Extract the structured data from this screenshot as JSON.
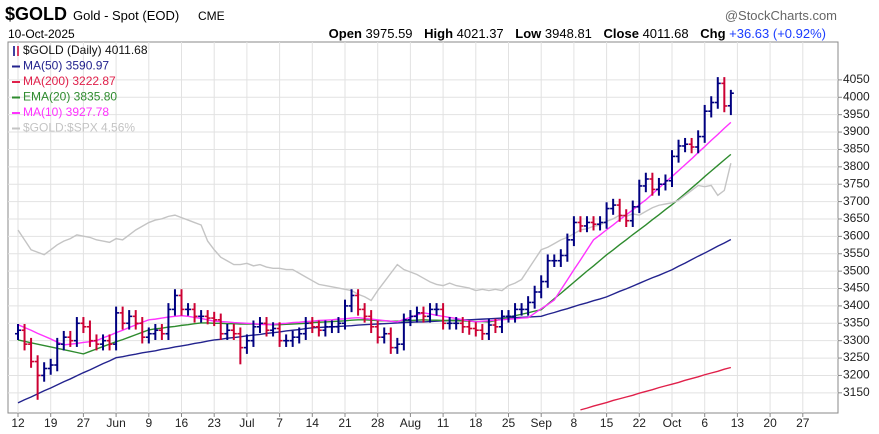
{
  "header": {
    "symbol": "$GOLD",
    "name": "Gold - Spot (EOD)",
    "exchange": "CME",
    "date": "10-Oct-2025",
    "brand": "@StockCharts.com",
    "open_label": "Open",
    "high_label": "High",
    "low_label": "Low",
    "close_label": "Close",
    "chg_label": "Chg",
    "chg": "+36.63 (+0.92%)"
  },
  "chart_data": {
    "type": "ohlc",
    "name": "$GOLD (Daily) 4011.68",
    "up_color": "#000080",
    "down_color": "#cc0033",
    "categories": [
      "12",
      null,
      null,
      null,
      null,
      "19",
      null,
      null,
      null,
      null,
      "27",
      null,
      null,
      null,
      null,
      "Jun",
      null,
      null,
      null,
      null,
      "9",
      null,
      null,
      null,
      null,
      "16",
      null,
      null,
      null,
      null,
      "23",
      null,
      null,
      null,
      null,
      "Jul",
      null,
      null,
      null,
      null,
      "7",
      null,
      null,
      null,
      null,
      "14",
      null,
      null,
      null,
      null,
      "21",
      null,
      null,
      null,
      null,
      "28",
      null,
      null,
      null,
      null,
      "Aug",
      null,
      null,
      null,
      null,
      "11",
      null,
      null,
      null,
      null,
      "18",
      null,
      null,
      null,
      null,
      "25",
      null,
      null,
      null,
      null,
      "Sep",
      null,
      null,
      null,
      null,
      "8",
      null,
      null,
      null,
      null,
      "15",
      null,
      null,
      null,
      null,
      "22",
      null,
      null,
      null,
      null,
      "Oct",
      null,
      null,
      null,
      null,
      "6",
      null,
      null,
      null,
      null,
      "13",
      null,
      null,
      null,
      null,
      "20",
      null,
      null,
      null,
      null,
      "27",
      null,
      null,
      null,
      null
    ],
    "open": [
      3320,
      3330,
      3290,
      3240,
      3200,
      3220,
      3230,
      3290,
      3310,
      3300,
      3350,
      3340,
      3300,
      3290,
      3300,
      3290,
      3380,
      3350,
      3370,
      3350,
      3310,
      3320,
      3330,
      3320,
      3390,
      3430,
      3390,
      3390,
      3370,
      3370,
      3365,
      3360,
      3320,
      3330,
      3320,
      3280,
      3300,
      3340,
      3350,
      3330,
      3335,
      3300,
      3300,
      3310,
      3320,
      3350,
      3340,
      3330,
      3340,
      3340,
      3350,
      3400,
      3430,
      3390,
      3370,
      3340,
      3310,
      3320,
      3280,
      3290,
      3360,
      3370,
      3380,
      3370,
      3390,
      3390,
      3350,
      3350,
      3350,
      3340,
      3335,
      3330,
      3320,
      3345,
      3340,
      3370,
      3370,
      3390,
      3390,
      3410,
      3440,
      3470,
      3530,
      3530,
      3545,
      3590,
      3640,
      3630,
      3640,
      3635,
      3640,
      3680,
      3690,
      3660,
      3645,
      3685,
      3745,
      3765,
      3735,
      3750,
      3760,
      3830,
      3860,
      3865,
      3857,
      3887,
      3960,
      3985,
      4040,
      3975.59,
      null,
      null,
      null,
      null,
      null,
      null,
      null,
      null,
      null,
      null,
      null,
      null,
      null,
      null,
      null
    ],
    "high": [
      3348,
      3348,
      3308,
      3258,
      3238,
      3248,
      3308,
      3328,
      3328,
      3368,
      3368,
      3358,
      3318,
      3318,
      3318,
      3398,
      3398,
      3388,
      3388,
      3368,
      3338,
      3348,
      3348,
      3408,
      3448,
      3448,
      3408,
      3408,
      3388,
      3388,
      3383,
      3378,
      3348,
      3348,
      3338,
      3318,
      3358,
      3368,
      3368,
      3353,
      3353,
      3318,
      3328,
      3338,
      3368,
      3368,
      3358,
      3358,
      3358,
      3368,
      3418,
      3448,
      3448,
      3408,
      3388,
      3358,
      3338,
      3338,
      3308,
      3378,
      3388,
      3398,
      3398,
      3408,
      3408,
      3408,
      3368,
      3368,
      3368,
      3358,
      3353,
      3348,
      3363,
      3363,
      3388,
      3388,
      3408,
      3408,
      3428,
      3458,
      3488,
      3548,
      3548,
      3563,
      3608,
      3658,
      3658,
      3658,
      3658,
      3658,
      3698,
      3708,
      3708,
      3678,
      3703,
      3763,
      3783,
      3783,
      3768,
      3778,
      3848,
      3878,
      3883,
      3883,
      3905,
      3978,
      4003,
      4058,
      4058,
      4021.37,
      null,
      null,
      null,
      null,
      null,
      null,
      null,
      null,
      null,
      null,
      null,
      null,
      null,
      null,
      null
    ],
    "low": [
      3302,
      3272,
      3222,
      3130,
      3182,
      3202,
      3212,
      3272,
      3282,
      3282,
      3322,
      3282,
      3272,
      3272,
      3272,
      3272,
      3332,
      3332,
      3332,
      3292,
      3292,
      3302,
      3302,
      3302,
      3372,
      3372,
      3372,
      3352,
      3352,
      3347,
      3342,
      3302,
      3302,
      3302,
      3232,
      3262,
      3282,
      3322,
      3312,
      3312,
      3282,
      3282,
      3282,
      3292,
      3302,
      3322,
      3312,
      3312,
      3322,
      3322,
      3332,
      3382,
      3372,
      3352,
      3322,
      3292,
      3292,
      3262,
      3262,
      3272,
      3342,
      3352,
      3352,
      3352,
      3372,
      3332,
      3332,
      3332,
      3322,
      3317,
      3312,
      3302,
      3302,
      3322,
      3322,
      3352,
      3352,
      3372,
      3372,
      3392,
      3422,
      3452,
      3512,
      3512,
      3527,
      3572,
      3612,
      3612,
      3617,
      3617,
      3622,
      3662,
      3642,
      3627,
      3627,
      3667,
      3727,
      3717,
      3717,
      3732,
      3742,
      3812,
      3842,
      3839,
      3839,
      3869,
      3942,
      3967,
      3957,
      3948.81,
      null,
      null,
      null,
      null,
      null,
      null,
      null,
      null,
      null,
      null,
      null,
      null,
      null,
      null,
      null
    ],
    "close": [
      3330,
      3290,
      3240,
      3200,
      3220,
      3230,
      3290,
      3310,
      3300,
      3350,
      3340,
      3300,
      3290,
      3300,
      3290,
      3380,
      3350,
      3370,
      3350,
      3310,
      3320,
      3330,
      3320,
      3390,
      3430,
      3390,
      3390,
      3370,
      3370,
      3365,
      3360,
      3320,
      3330,
      3320,
      3280,
      3300,
      3340,
      3350,
      3330,
      3335,
      3300,
      3300,
      3310,
      3320,
      3350,
      3340,
      3330,
      3340,
      3340,
      3350,
      3400,
      3430,
      3390,
      3370,
      3340,
      3310,
      3320,
      3280,
      3290,
      3360,
      3370,
      3380,
      3370,
      3390,
      3390,
      3350,
      3350,
      3350,
      3340,
      3335,
      3330,
      3320,
      3345,
      3340,
      3370,
      3370,
      3390,
      3390,
      3410,
      3440,
      3470,
      3530,
      3530,
      3545,
      3590,
      3640,
      3630,
      3640,
      3635,
      3640,
      3680,
      3690,
      3660,
      3645,
      3685,
      3745,
      3765,
      3735,
      3750,
      3760,
      3830,
      3860,
      3865,
      3857,
      3887,
      3960,
      3985,
      4040,
      3975.05,
      4011.68,
      null,
      null,
      null,
      null,
      null,
      null,
      null,
      null,
      null,
      null,
      null,
      null,
      null,
      null,
      null
    ],
    "series": [
      {
        "name": "MA(50) 3590.97",
        "color": "#23238e",
        "values": [
          3121,
          3130,
          3138,
          3147,
          3156,
          3164,
          3173,
          3182,
          3190,
          3199,
          3208,
          3216,
          3225,
          3234,
          3242,
          3251,
          3254,
          3258,
          3261,
          3265,
          3268,
          3271,
          3275,
          3278,
          3282,
          3285,
          3288,
          3292,
          3295,
          3299,
          3302,
          3304,
          3307,
          3309,
          3311,
          3314,
          3316,
          3318,
          3321,
          3323,
          3325,
          3328,
          3330,
          3332,
          3335,
          3337,
          3338,
          3339,
          3340,
          3341,
          3342,
          3343,
          3345,
          3346,
          3347,
          3348,
          3349,
          3350,
          3351,
          3352,
          3353,
          3354,
          3354,
          3355,
          3356,
          3357,
          3358,
          3359,
          3360,
          3360,
          3361,
          3362,
          3363,
          3364,
          3365,
          3366,
          3366,
          3367,
          3368,
          3369,
          3370,
          3376,
          3381,
          3387,
          3392,
          3398,
          3404,
          3409,
          3415,
          3420,
          3426,
          3434,
          3442,
          3449,
          3457,
          3465,
          3473,
          3481,
          3488,
          3496,
          3504,
          3514,
          3523,
          3533,
          3543,
          3552,
          3562,
          3572,
          3581,
          3590.97,
          null,
          null,
          null,
          null,
          null,
          null,
          null,
          null,
          null,
          null,
          null,
          null,
          null,
          null,
          null
        ]
      },
      {
        "name": "MA(200) 3222.87",
        "color": "#e0204a",
        "values": [
          null,
          null,
          null,
          null,
          null,
          null,
          null,
          null,
          null,
          null,
          null,
          null,
          null,
          null,
          null,
          null,
          null,
          null,
          null,
          null,
          null,
          null,
          null,
          null,
          null,
          null,
          null,
          null,
          null,
          null,
          null,
          null,
          null,
          null,
          null,
          null,
          null,
          null,
          null,
          null,
          null,
          null,
          null,
          null,
          null,
          null,
          null,
          null,
          null,
          null,
          null,
          null,
          null,
          null,
          null,
          null,
          null,
          null,
          null,
          null,
          null,
          null,
          null,
          null,
          null,
          null,
          null,
          null,
          null,
          null,
          null,
          null,
          null,
          null,
          null,
          null,
          null,
          null,
          null,
          null,
          null,
          null,
          null,
          null,
          null,
          null,
          3101,
          3106,
          3112,
          3117,
          3122,
          3128,
          3133,
          3138,
          3143,
          3149,
          3154,
          3159,
          3165,
          3170,
          3175,
          3180,
          3186,
          3191,
          3196,
          3202,
          3207,
          3212,
          3218,
          3222.87,
          null,
          null,
          null,
          null,
          null,
          null,
          null,
          null,
          null,
          null,
          null,
          null,
          null,
          null,
          null
        ]
      },
      {
        "name": "EMA(20) 3835.80",
        "color": "#2e8b2e",
        "values": [
          3302,
          3298,
          3294,
          3290,
          3286,
          3282,
          3278,
          3274,
          3270,
          3266,
          3262,
          3269,
          3276,
          3283,
          3290,
          3297,
          3303,
          3310,
          3317,
          3324,
          3331,
          3334,
          3336,
          3339,
          3341,
          3344,
          3346,
          3349,
          3351,
          3351,
          3350,
          3350,
          3349,
          3349,
          3348,
          3348,
          3348,
          3347,
          3347,
          3346,
          3346,
          3347,
          3348,
          3349,
          3350,
          3352,
          3353,
          3354,
          3355,
          3356,
          3357,
          3359,
          3360,
          3360,
          3359,
          3358,
          3357,
          3356,
          3356,
          3357,
          3358,
          3359,
          3360,
          3359,
          3359,
          3358,
          3358,
          3357,
          3357,
          3356,
          3355,
          3355,
          3354,
          3358,
          3363,
          3367,
          3372,
          3376,
          3380,
          3385,
          3389,
          3405,
          3421,
          3436,
          3452,
          3468,
          3484,
          3500,
          3515,
          3531,
          3547,
          3561,
          3576,
          3590,
          3605,
          3619,
          3633,
          3648,
          3662,
          3677,
          3691,
          3707,
          3723,
          3739,
          3755,
          3772,
          3788,
          3804,
          3820,
          3835.8,
          null,
          null,
          null,
          null,
          null,
          null,
          null,
          null,
          null,
          null,
          null,
          null,
          null,
          null,
          null
        ]
      },
      {
        "name": "MA(10) 3927.78",
        "color": "#ff33ff",
        "values": [
          3346,
          3338,
          3330,
          3321,
          3313,
          3305,
          3296,
          3288,
          3290,
          3292,
          3295,
          3297,
          3300,
          3308,
          3315,
          3323,
          3330,
          3338,
          3345,
          3353,
          3360,
          3362,
          3365,
          3368,
          3370,
          3372,
          3370,
          3367,
          3364,
          3360,
          3356,
          3355,
          3354,
          3352,
          3351,
          3350,
          3349,
          3347,
          3346,
          3347,
          3349,
          3350,
          3352,
          3353,
          3355,
          3356,
          3358,
          3359,
          3360,
          3362,
          3363,
          3365,
          3366,
          3364,
          3362,
          3360,
          3358,
          3356,
          3354,
          3361,
          3367,
          3374,
          3380,
          3377,
          3373,
          3370,
          3367,
          3364,
          3360,
          3357,
          3354,
          3356,
          3357,
          3359,
          3360,
          3362,
          3363,
          3365,
          3366,
          3379,
          3392,
          3404,
          3417,
          3446,
          3475,
          3504,
          3532,
          3561,
          3590,
          3604,
          3619,
          3633,
          3648,
          3662,
          3676,
          3691,
          3705,
          3722,
          3739,
          3756,
          3772,
          3789,
          3806,
          3823,
          3841,
          3858,
          3876,
          3893,
          3911,
          3927.78,
          null,
          null,
          null,
          null,
          null,
          null,
          null,
          null,
          null,
          null,
          null,
          null,
          null,
          null,
          null
        ]
      },
      {
        "name": "$GOLD:$SPX 4.56%",
        "color": "#c4c4c4",
        "axis": "y2",
        "values": [
          4.02,
          3.94,
          3.86,
          3.84,
          3.82,
          3.86,
          3.9,
          3.93,
          3.95,
          3.98,
          3.97,
          3.96,
          3.94,
          3.93,
          3.92,
          3.95,
          3.94,
          3.98,
          4.02,
          4.05,
          4.08,
          4.1,
          4.11,
          4.13,
          4.14,
          4.12,
          4.1,
          4.08,
          4.06,
          3.93,
          3.86,
          3.8,
          3.77,
          3.74,
          3.74,
          3.75,
          3.73,
          3.74,
          3.72,
          3.71,
          3.71,
          3.7,
          3.7,
          3.67,
          3.64,
          3.61,
          3.58,
          3.57,
          3.56,
          3.55,
          3.54,
          3.53,
          3.5,
          3.48,
          3.45,
          3.53,
          3.6,
          3.67,
          3.74,
          3.7,
          3.68,
          3.66,
          3.63,
          3.6,
          3.58,
          3.57,
          3.59,
          3.57,
          3.56,
          3.55,
          3.53,
          3.54,
          3.53,
          3.54,
          3.53,
          3.57,
          3.59,
          3.62,
          3.7,
          3.78,
          3.86,
          3.88,
          3.91,
          3.94,
          3.96,
          3.99,
          4.02,
          4.03,
          4.05,
          4.06,
          4.09,
          4.11,
          4.14,
          4.13,
          4.15,
          4.14,
          4.17,
          4.2,
          4.22,
          4.23,
          4.24,
          4.26,
          4.3,
          4.34,
          4.38,
          4.37,
          4.38,
          4.3,
          4.34,
          4.56,
          null,
          null,
          null,
          null,
          null,
          null,
          null,
          null,
          null,
          null,
          null,
          null,
          null,
          null,
          null
        ]
      }
    ],
    "ylim": [
      3092,
      4159
    ],
    "yticks": [
      3150,
      3200,
      3250,
      3300,
      3350,
      3400,
      3450,
      3500,
      3550,
      3600,
      3650,
      3700,
      3750,
      3800,
      3850,
      3900,
      3950,
      4000,
      4050
    ],
    "y2lim": [
      2.54,
      5.54
    ],
    "grid": true,
    "legend": "top-left"
  }
}
